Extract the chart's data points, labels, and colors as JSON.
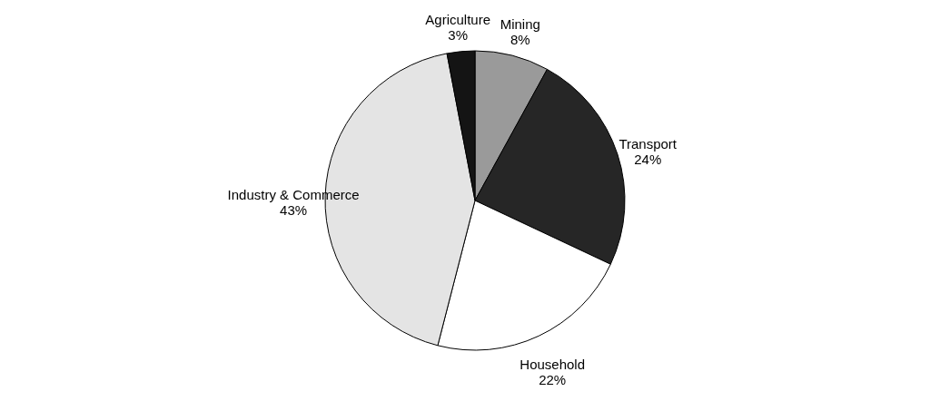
{
  "chart_data": {
    "type": "pie",
    "categories": [
      "Mining",
      "Transport",
      "Household",
      "Industry & Commerce",
      "Agriculture"
    ],
    "values": [
      8,
      24,
      22,
      43,
      3
    ],
    "value_labels": [
      "8%",
      "24%",
      "22%",
      "43%",
      "3%"
    ],
    "colors": [
      "#9a9a9a",
      "#262626",
      "#ffffff",
      "#e4e4e4",
      "#141414"
    ]
  }
}
